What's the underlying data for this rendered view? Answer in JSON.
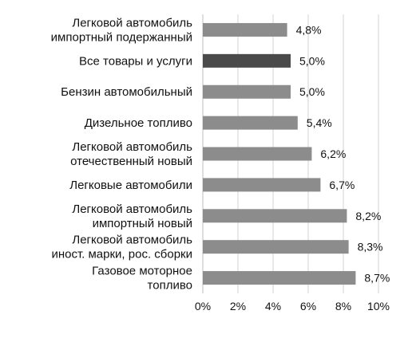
{
  "chart_data": {
    "type": "bar",
    "orientation": "horizontal",
    "categories": [
      [
        "Легковой автомобиль",
        "импортный подержанный"
      ],
      [
        "Все товары и услуги"
      ],
      [
        "Бензин автомобильный"
      ],
      [
        "Дизельное топливо"
      ],
      [
        "Легковой автомобиль",
        "отечественный новый"
      ],
      [
        "Легковые автомобили"
      ],
      [
        "Легковой автомобиль",
        "импортный новый"
      ],
      [
        "Легковой автомобиль",
        "иност. марки, рос. сборки"
      ],
      [
        "Газовое моторное",
        "топливо"
      ]
    ],
    "values": [
      4.8,
      5.0,
      5.0,
      5.4,
      6.2,
      6.7,
      8.2,
      8.3,
      8.7
    ],
    "value_labels": [
      "4,8%",
      "5,0%",
      "5,0%",
      "5,4%",
      "6,2%",
      "6,7%",
      "8,2%",
      "8,3%",
      "8,7%"
    ],
    "highlight_index": 1,
    "xlim": [
      0,
      10
    ],
    "x_ticks": [
      0,
      2,
      4,
      6,
      8,
      10
    ],
    "x_tick_labels": [
      "0%",
      "2%",
      "4%",
      "6%",
      "8%",
      "10%"
    ],
    "grid": "vertical",
    "legend": "none",
    "colors": {
      "bar": "#8c8c8c",
      "bar_highlight": "#4a4a4a",
      "grid": "#d3d3d3",
      "axis": "#bfbfbf",
      "text": "#111111"
    }
  }
}
